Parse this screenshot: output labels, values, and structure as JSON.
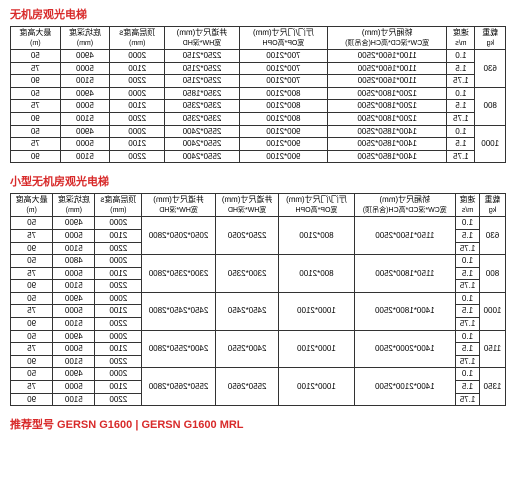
{
  "title1": "无机房观光电梯",
  "title2": "小型无机房观光电梯",
  "footer": "推荐型号 GERSN G1600 | GERSN G1600 MRL",
  "headers": {
    "load": "载重",
    "load_unit": "kg",
    "speed": "速度",
    "speed_unit": "m/s",
    "car": "轿厢尺寸(mm)",
    "car_sub": "宽CW*深CD*高CH(含吊顶)",
    "door": "厅门/门尺寸(mm)",
    "door_sub": "宽OP*高OPH",
    "shaft": "井道尺寸(mm)",
    "shaft_sub": "宽HW*深HD",
    "overhead": "顶层高度s",
    "overhead_sub": "(mm)",
    "pit": "底坑深度",
    "pit_unit": "(mm)",
    "top": "最大高度",
    "top_unit": "(m)"
  },
  "table1": [
    {
      "load": "630",
      "rows": [
        {
          "spd": "1.0",
          "car": "1100*1600*2500",
          "door": "700*2100",
          "shaft": "2250*2150",
          "oh": "2000",
          "pit": "4900",
          "top": "50"
        },
        {
          "spd": "1.5",
          "car": "1100*1600*2500",
          "door": "700*2100",
          "shaft": "2250*2150",
          "oh": "2100",
          "pit": "5000",
          "top": "75"
        },
        {
          "spd": "1.75",
          "car": "1100*1600*2500",
          "door": "700*2100",
          "shaft": "2250*2150",
          "oh": "2200",
          "pit": "5100",
          "top": "90"
        }
      ]
    },
    {
      "load": "800",
      "rows": [
        {
          "spd": "1.0",
          "car": "1200*1800*2500",
          "door": "800*2100",
          "shaft": "2350*1850",
          "oh": "2000",
          "pit": "4900",
          "top": "50"
        },
        {
          "spd": "1.5",
          "car": "1200*1800*2500",
          "door": "800*2100",
          "shaft": "2350*2350",
          "oh": "2100",
          "pit": "5000",
          "top": "75"
        },
        {
          "spd": "1.75",
          "car": "1200*1800*2500",
          "door": "800*2100",
          "shaft": "2350*2350",
          "oh": "2200",
          "pit": "5100",
          "top": "90"
        }
      ]
    },
    {
      "load": "1000",
      "rows": [
        {
          "spd": "1.0",
          "car": "1400*1850*2500",
          "door": "900*2100",
          "shaft": "2550*2400",
          "oh": "2000",
          "pit": "4900",
          "top": "50"
        },
        {
          "spd": "1.5",
          "car": "1400*1850*2500",
          "door": "900*2100",
          "shaft": "2550*2400",
          "oh": "2100",
          "pit": "5000",
          "top": "75"
        },
        {
          "spd": "1.75",
          "car": "1400*1850*2500",
          "door": "900*2100",
          "shaft": "2550*2400",
          "oh": "2200",
          "pit": "5100",
          "top": "90"
        }
      ]
    }
  ],
  "table2": [
    {
      "load": "630",
      "rows": [
        {
          "spd": "1.0",
          "car": "1150*1500*2500",
          "door": "800*2100",
          "shaft": "2250*2050",
          "shaft2": "2050*2050*2800",
          "oh": "2000",
          "pit": "4900",
          "top": "50"
        },
        {
          "spd": "1.5",
          "car": "",
          "door": "",
          "shaft": "",
          "shaft2": "",
          "oh": "2100",
          "pit": "5000",
          "top": "75"
        },
        {
          "spd": "1.75",
          "car": "",
          "door": "",
          "shaft": "",
          "shaft2": "",
          "oh": "2200",
          "pit": "5100",
          "top": "90"
        }
      ]
    },
    {
      "load": "800",
      "rows": [
        {
          "spd": "1.0",
          "car": "1150*1800*2500",
          "door": "800*2100",
          "shaft": "2300*2350",
          "shaft2": "2300*2350*2800",
          "oh": "2000",
          "pit": "4800",
          "top": "50"
        },
        {
          "spd": "1.5",
          "car": "",
          "door": "",
          "shaft": "",
          "shaft2": "",
          "oh": "2100",
          "pit": "5000",
          "top": "75"
        },
        {
          "spd": "1.75",
          "car": "",
          "door": "",
          "shaft": "",
          "shaft2": "",
          "oh": "2200",
          "pit": "5100",
          "top": "90"
        }
      ]
    },
    {
      "load": "1000",
      "rows": [
        {
          "spd": "1.0",
          "car": "1400*1800*2500",
          "door": "1000*2100",
          "shaft": "2450*2450",
          "shaft2": "2450*2450*2800",
          "oh": "2000",
          "pit": "4900",
          "top": "50"
        },
        {
          "spd": "1.5",
          "car": "",
          "door": "",
          "shaft": "",
          "shaft2": "",
          "oh": "2100",
          "pit": "5000",
          "top": "75"
        },
        {
          "spd": "1.75",
          "car": "",
          "door": "",
          "shaft": "",
          "shaft2": "",
          "oh": "2200",
          "pit": "5100",
          "top": "90"
        }
      ]
    },
    {
      "load": "1150",
      "rows": [
        {
          "spd": "1.0",
          "car": "1400*2000*2500",
          "door": "1000*2100",
          "shaft": "2400*2550",
          "shaft2": "2400*2550*2800",
          "oh": "2000",
          "pit": "4900",
          "top": "50"
        },
        {
          "spd": "1.5",
          "car": "",
          "door": "",
          "shaft": "",
          "shaft2": "",
          "oh": "2100",
          "pit": "5000",
          "top": "75"
        },
        {
          "spd": "1.75",
          "car": "",
          "door": "",
          "shaft": "",
          "shaft2": "",
          "oh": "2200",
          "pit": "5100",
          "top": "90"
        }
      ]
    },
    {
      "load": "1350",
      "rows": [
        {
          "spd": "1.0",
          "car": "1400*2100*2500",
          "door": "1000*2100",
          "shaft": "2550*2650",
          "shaft2": "2550*2650*2800",
          "oh": "2000",
          "pit": "4900",
          "top": "50"
        },
        {
          "spd": "1.5",
          "car": "",
          "door": "",
          "shaft": "",
          "shaft2": "",
          "oh": "2100",
          "pit": "5000",
          "top": "75"
        },
        {
          "spd": "1.75",
          "car": "",
          "door": "",
          "shaft": "",
          "shaft2": "",
          "oh": "2200",
          "pit": "5100",
          "top": "90"
        }
      ]
    }
  ]
}
